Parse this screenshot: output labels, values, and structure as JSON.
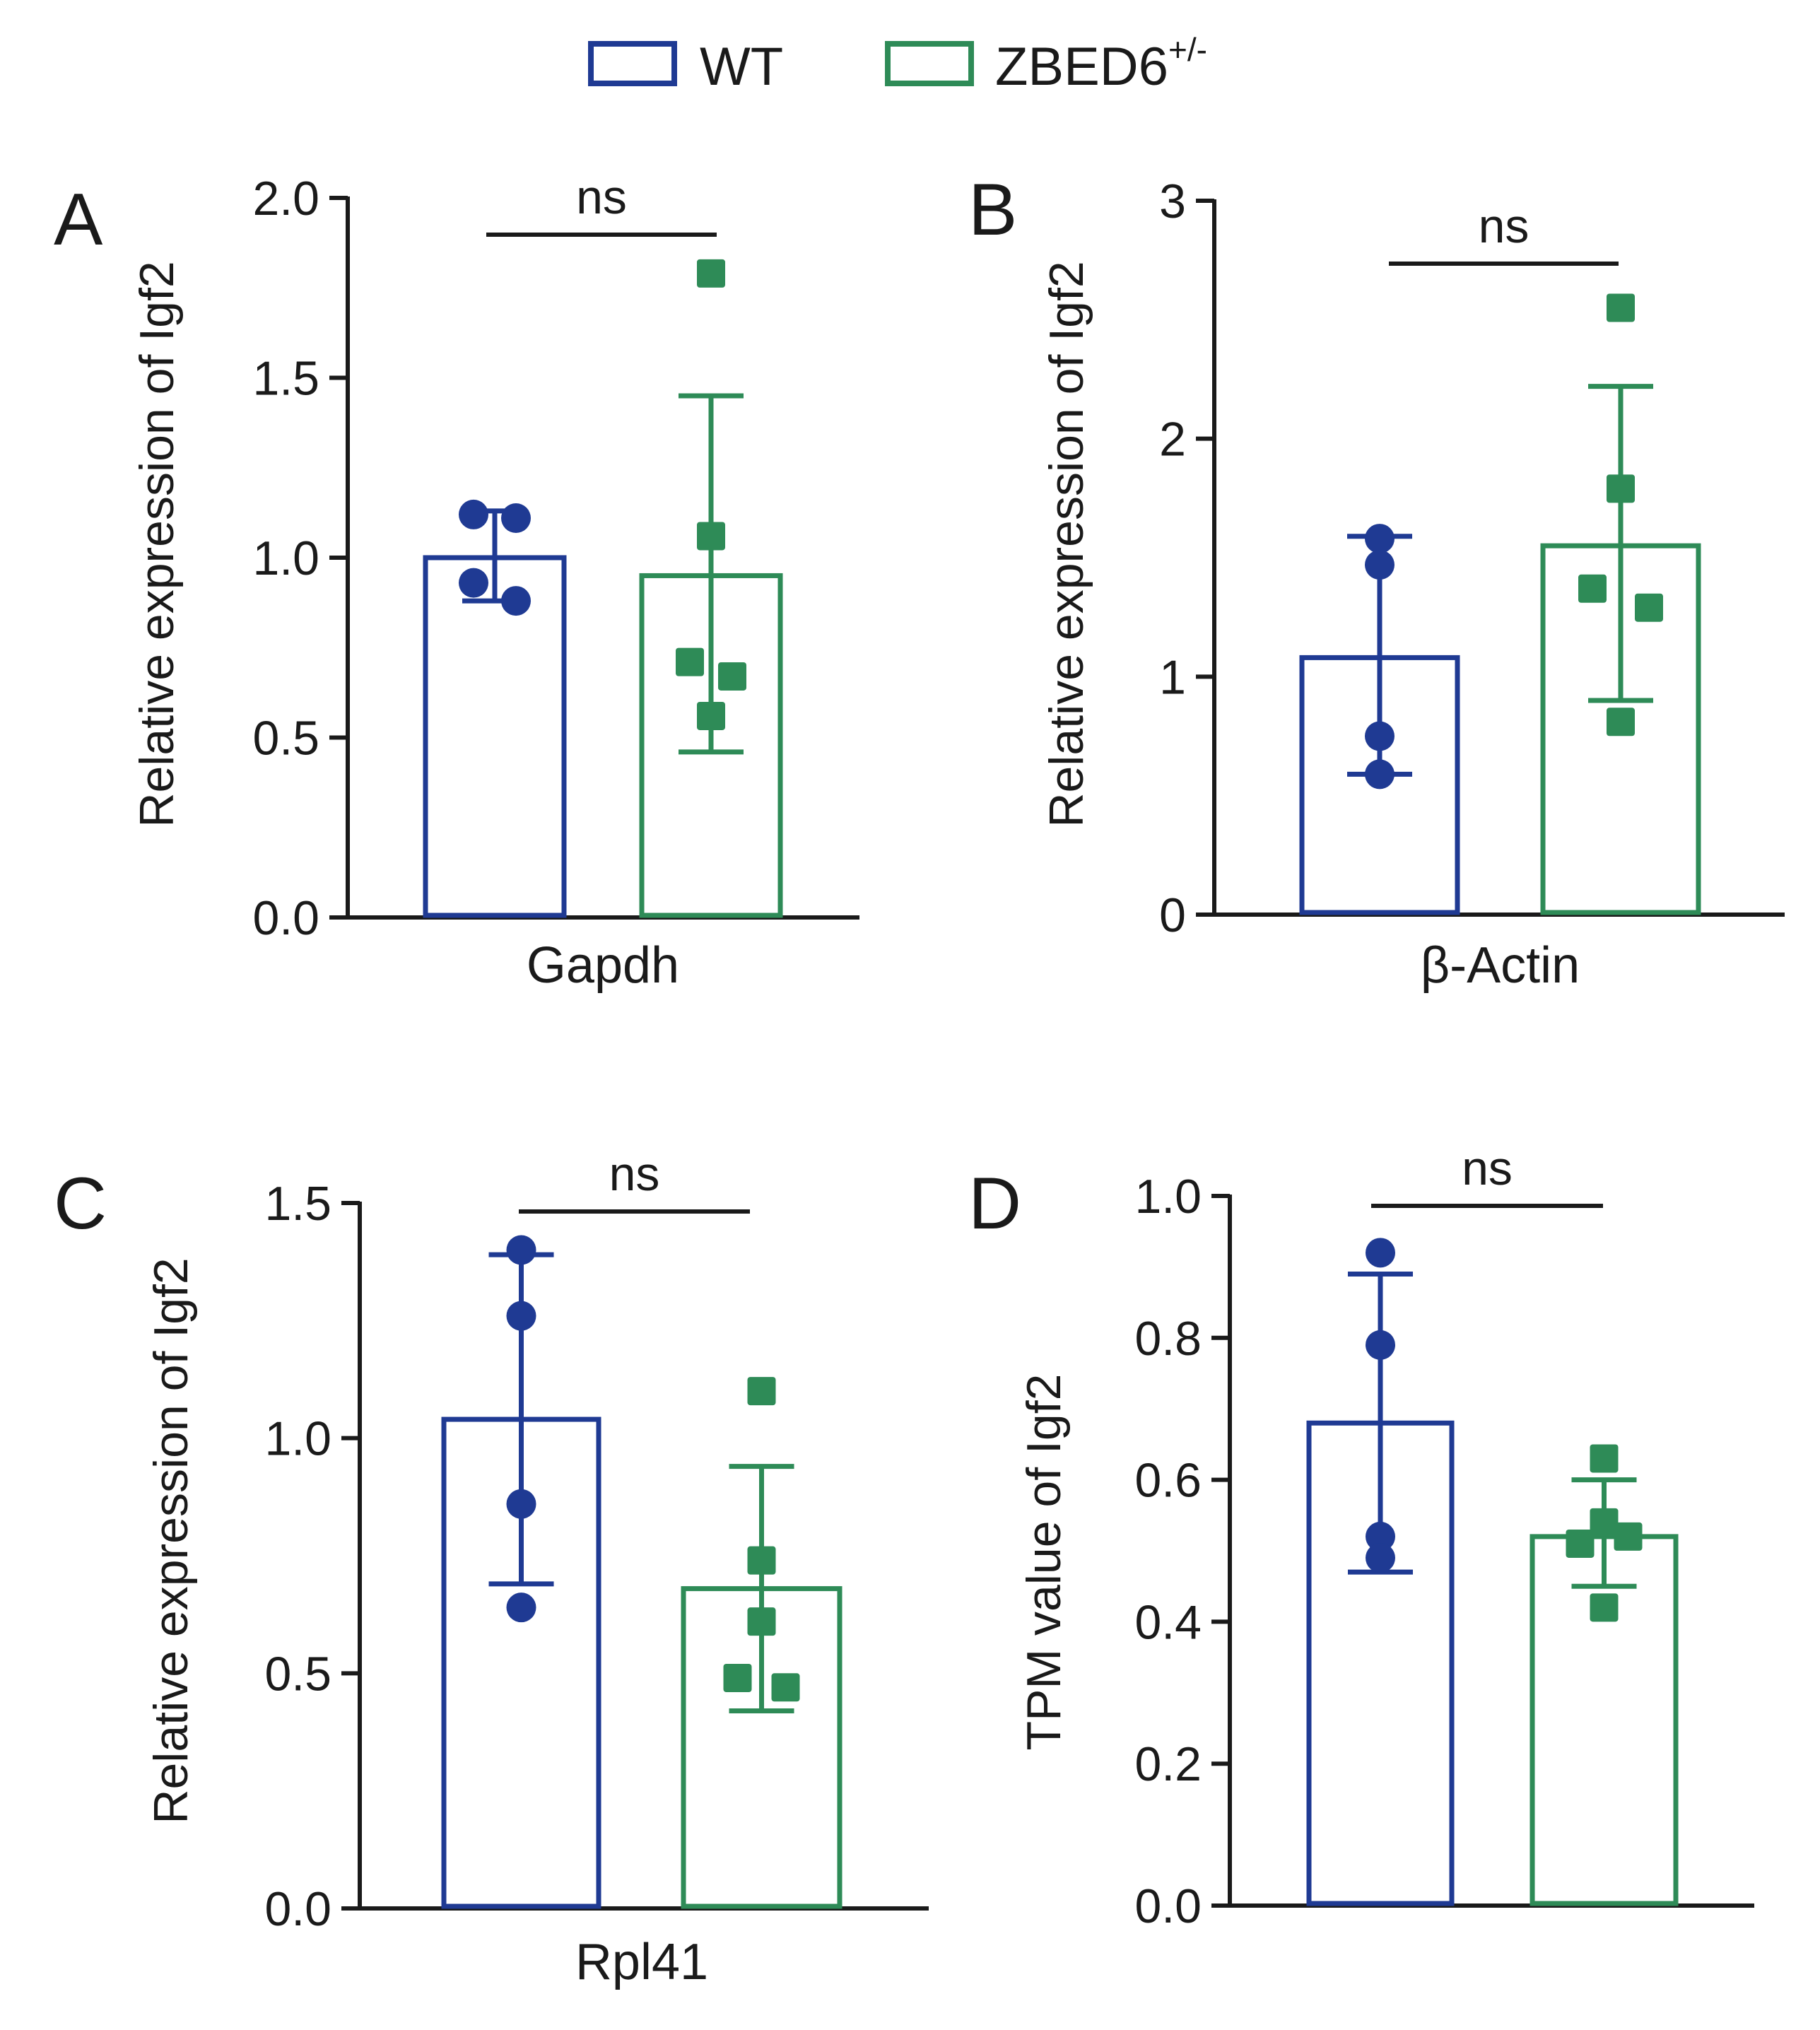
{
  "legend": [
    {
      "label": "WT",
      "superscript": "",
      "color": "#1f3a93",
      "shape": "circle"
    },
    {
      "label": "ZBED6",
      "superscript": "+/-",
      "color": "#2e8b57",
      "shape": "square"
    }
  ],
  "colors": {
    "wt": "#1f3a93",
    "het": "#2e8b57",
    "axis": "#1a1a1a"
  },
  "chart_data": [
    {
      "type": "bar",
      "panel": "A",
      "ylabel": "Relative expression of Igf2",
      "category": "Gapdh",
      "ylim": [
        0,
        2
      ],
      "yticks": [
        0,
        0.5,
        1,
        1.5,
        2
      ],
      "ytick_labels": [
        "0.0",
        "0.5",
        "1.0",
        "1.5",
        "2.0"
      ],
      "significance": "ns",
      "series": [
        {
          "name": "WT",
          "mean": 1.0,
          "err_low": 0.88,
          "err_high": 1.13,
          "points": [
            1.12,
            1.11,
            0.93,
            0.88
          ]
        },
        {
          "name": "ZBED6+/-",
          "mean": 0.95,
          "err_low": 0.46,
          "err_high": 1.45,
          "points": [
            1.79,
            1.06,
            0.71,
            0.67,
            0.56
          ]
        }
      ]
    },
    {
      "type": "bar",
      "panel": "B",
      "ylabel": "Relative expression of Igf2",
      "category": "β-Actin",
      "ylim": [
        0,
        3
      ],
      "yticks": [
        0,
        1,
        2,
        3
      ],
      "ytick_labels": [
        "0",
        "1",
        "2",
        "3"
      ],
      "significance": "ns",
      "series": [
        {
          "name": "WT",
          "mean": 1.08,
          "err_low": 0.59,
          "err_high": 1.59,
          "points": [
            1.58,
            1.47,
            0.75,
            0.59
          ]
        },
        {
          "name": "ZBED6+/-",
          "mean": 1.55,
          "err_low": 0.9,
          "err_high": 2.22,
          "points": [
            2.55,
            1.79,
            1.37,
            1.29,
            0.81
          ]
        }
      ]
    },
    {
      "type": "bar",
      "panel": "C",
      "ylabel": "Relative expression of Igf2",
      "category": "Rpl41",
      "ylim": [
        0,
        1.5
      ],
      "yticks": [
        0,
        0.5,
        1,
        1.5
      ],
      "ytick_labels": [
        "0.0",
        "0.5",
        "1.0",
        "1.5"
      ],
      "significance": "ns",
      "series": [
        {
          "name": "WT",
          "mean": 1.04,
          "err_low": 0.69,
          "err_high": 1.39,
          "points": [
            1.4,
            1.26,
            0.86,
            0.64
          ]
        },
        {
          "name": "ZBED6+/-",
          "mean": 0.68,
          "err_low": 0.42,
          "err_high": 0.94,
          "points": [
            1.1,
            0.74,
            0.61,
            0.49,
            0.47
          ]
        }
      ]
    },
    {
      "type": "bar",
      "panel": "D",
      "ylabel": "TPM value of Igf2",
      "category": "",
      "ylim": [
        0,
        1
      ],
      "yticks": [
        0,
        0.2,
        0.4,
        0.6,
        0.8,
        1
      ],
      "ytick_labels": [
        "0.0",
        "0.2",
        "0.4",
        "0.6",
        "0.8",
        "1.0"
      ],
      "significance": "ns",
      "series": [
        {
          "name": "WT",
          "mean": 0.68,
          "err_low": 0.47,
          "err_high": 0.89,
          "points": [
            0.92,
            0.79,
            0.52,
            0.49
          ]
        },
        {
          "name": "ZBED6+/-",
          "mean": 0.52,
          "err_low": 0.45,
          "err_high": 0.6,
          "points": [
            0.63,
            0.54,
            0.51,
            0.52,
            0.42
          ]
        }
      ]
    }
  ]
}
